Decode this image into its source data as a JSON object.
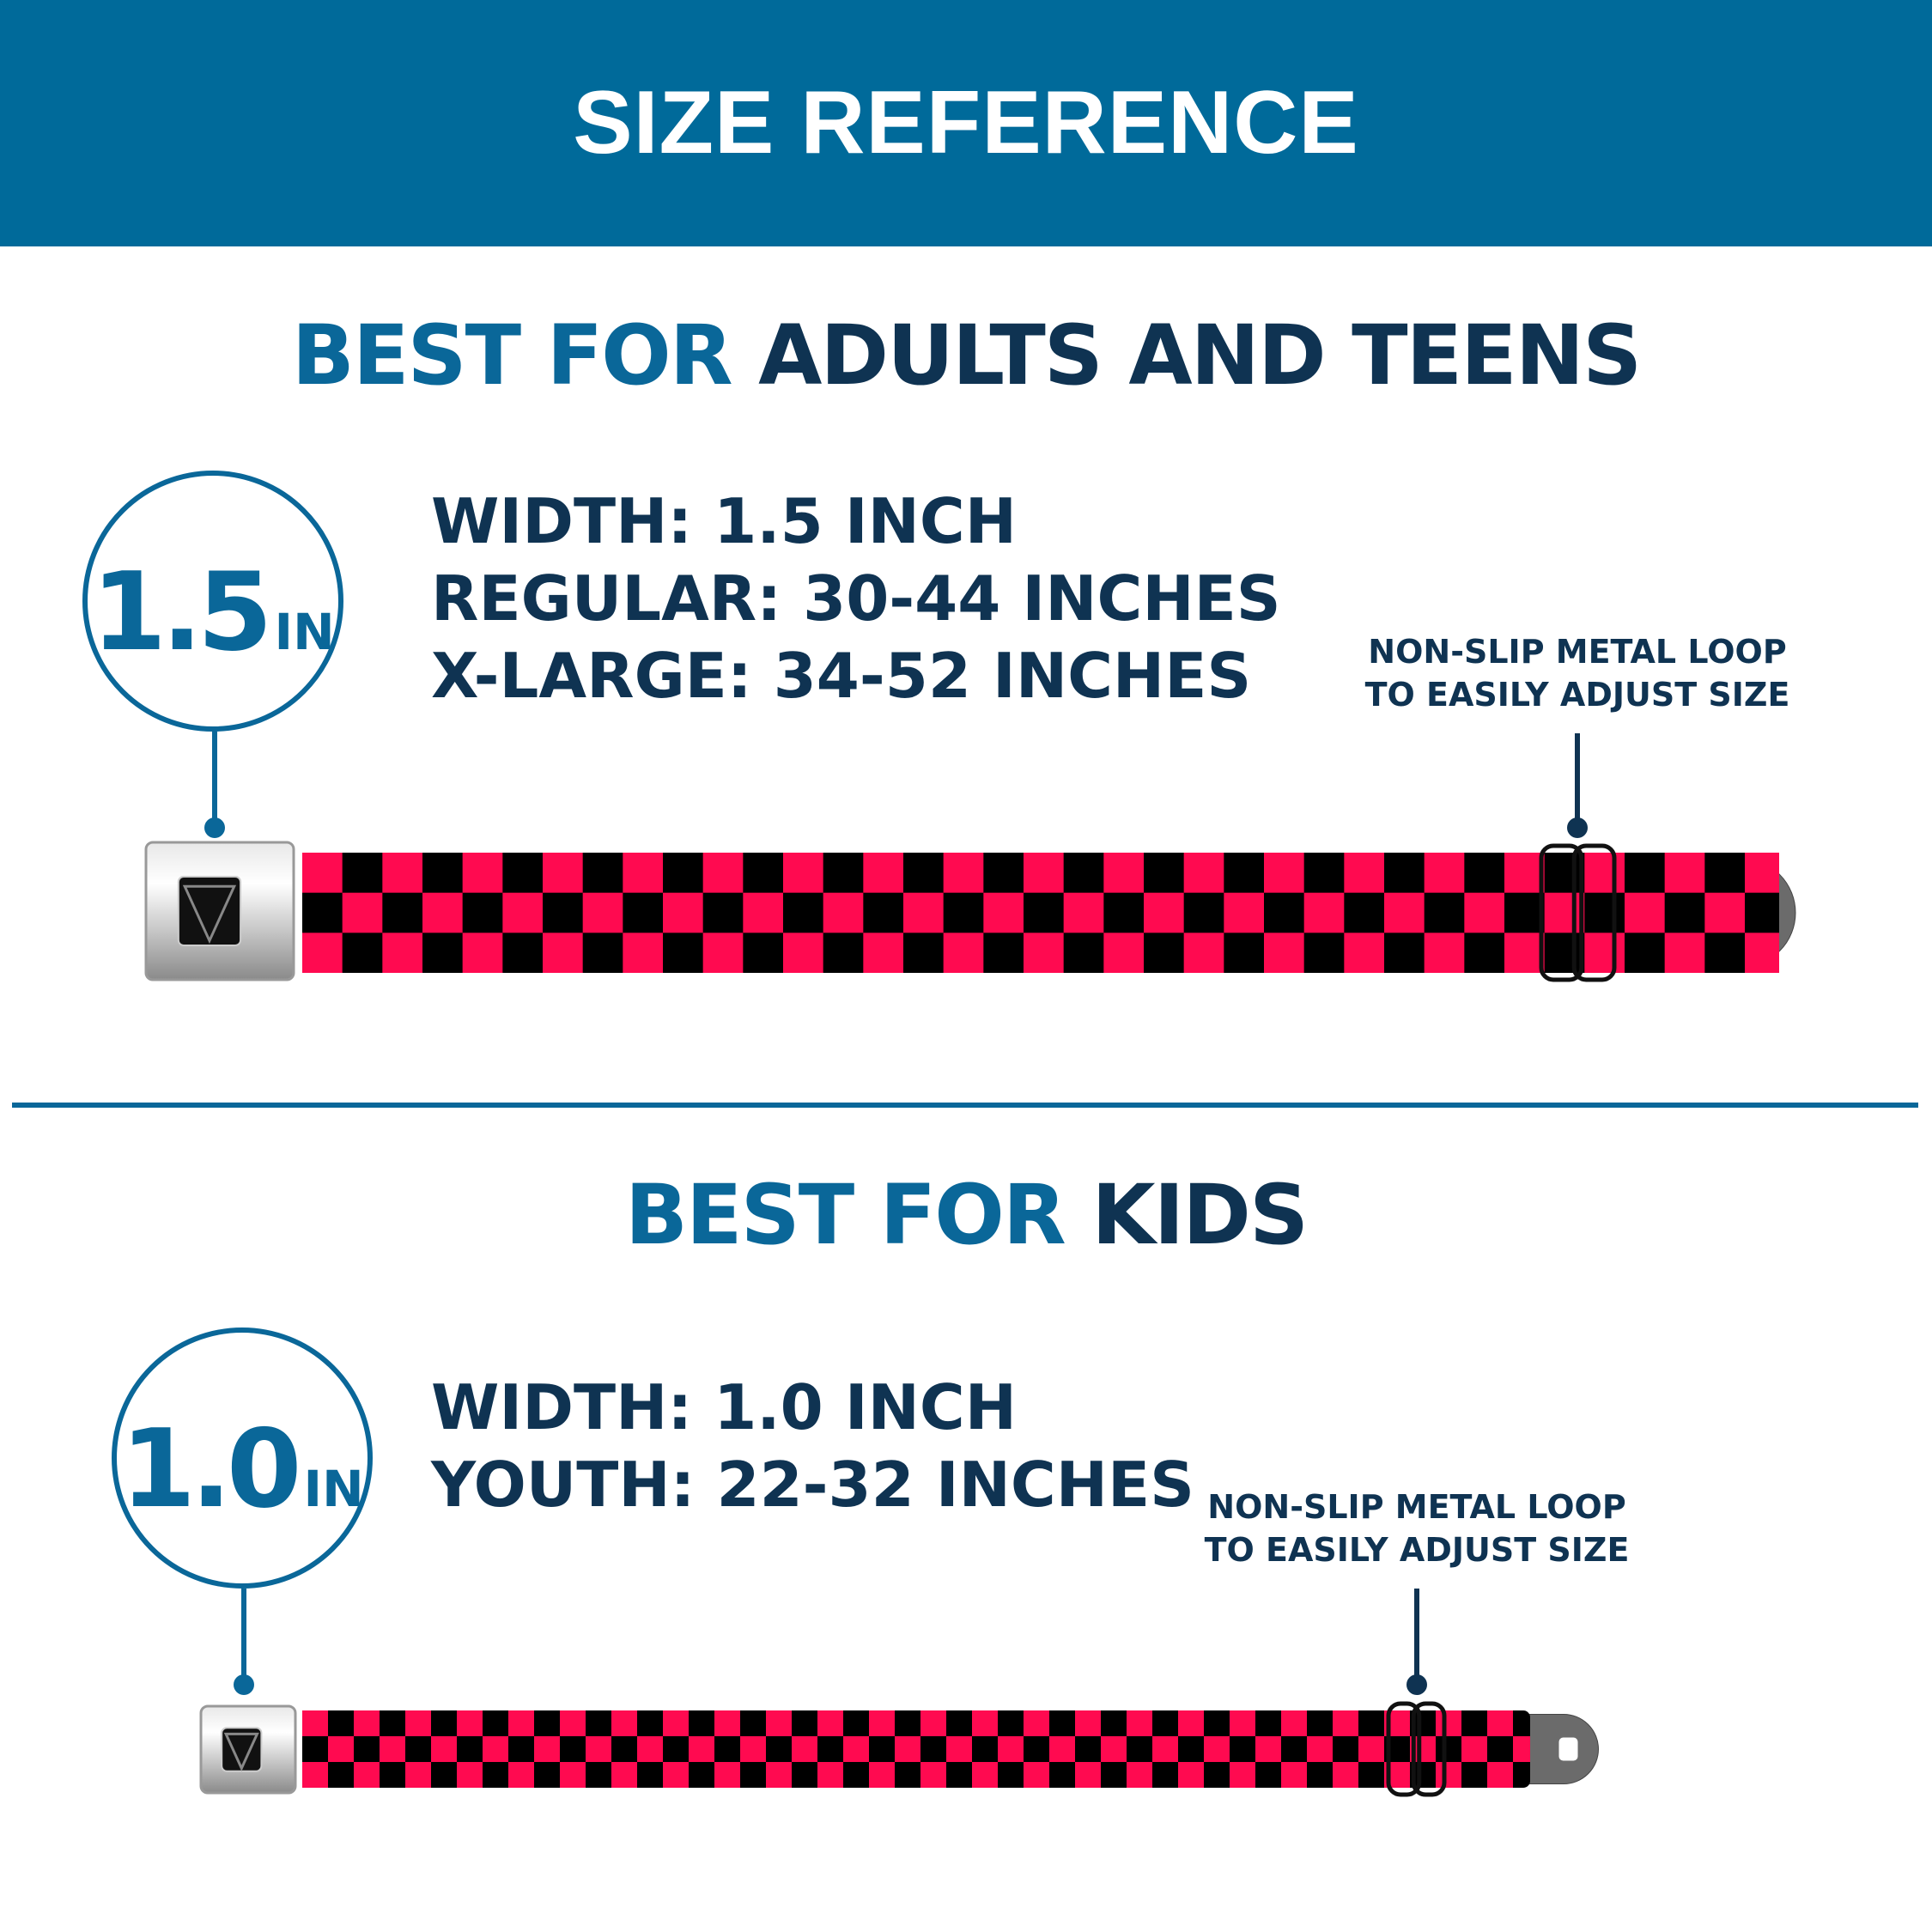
{
  "header": {
    "title": "SIZE REFERENCE"
  },
  "colors": {
    "header_bg": "#006a9a",
    "accent_blue": "#0a6799",
    "navy": "#0f3352",
    "belt_pink": "#ff0a50",
    "belt_black": "#000000"
  },
  "adults": {
    "heading_highlight": "BEST FOR",
    "heading_rest": "ADULTS AND TEENS",
    "badge_number": "1.5",
    "badge_unit": "IN",
    "specs": [
      "WIDTH: 1.5 INCH",
      "REGULAR: 30-44 INCHES",
      "X-LARGE: 34-52 INCHES"
    ],
    "callout": [
      "NON-SLIP METAL LOOP",
      "TO EASILY ADJUST SIZE"
    ]
  },
  "kids": {
    "heading_highlight": "BEST FOR",
    "heading_rest": "KIDS",
    "badge_number": "1.0",
    "badge_unit": "IN",
    "specs": [
      "WIDTH: 1.0 INCH",
      "YOUTH: 22-32 INCHES"
    ],
    "callout": [
      "NON-SLIP METAL LOOP",
      "TO EASILY ADJUST SIZE"
    ]
  },
  "icons": {
    "buckle": "seatbelt-buckle-icon",
    "logo": "bd-shield-logo"
  }
}
